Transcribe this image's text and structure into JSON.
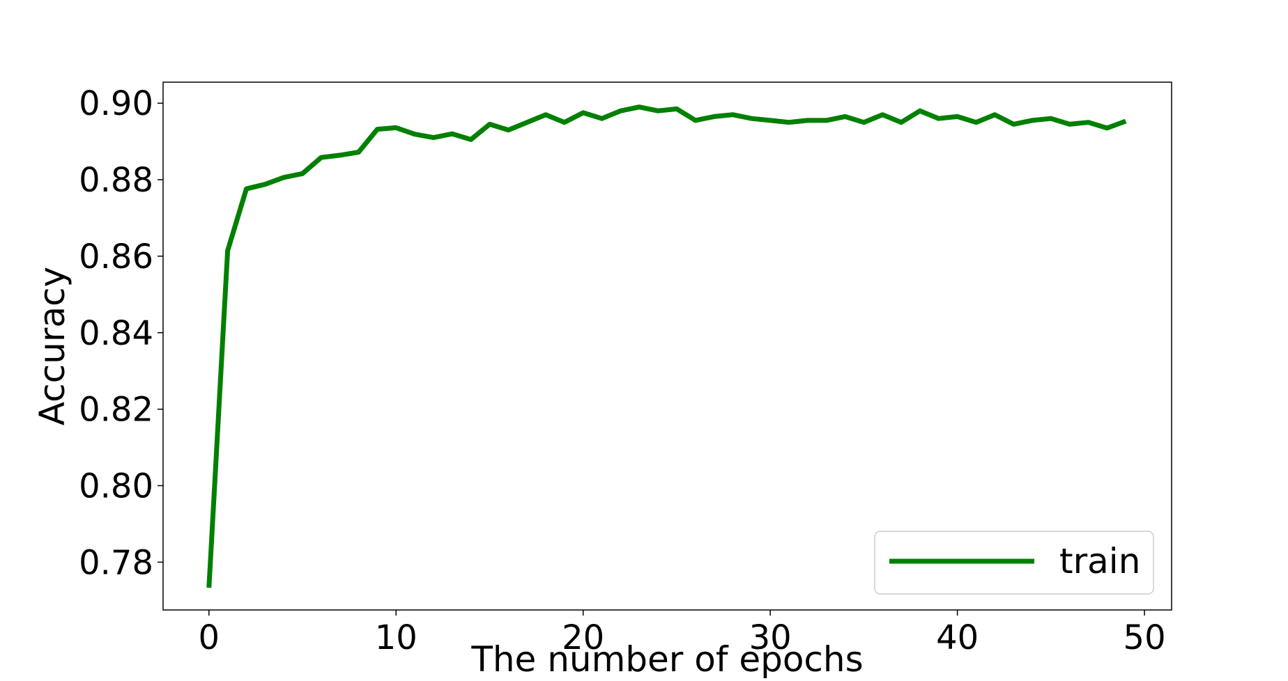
{
  "chart_data": {
    "type": "line",
    "title": "",
    "xlabel": "The number of epochs",
    "ylabel": "Accuracy",
    "xlim": [
      -2.45,
      51.45
    ],
    "ylim": [
      0.7675,
      0.9055
    ],
    "x_ticks": [
      0,
      10,
      20,
      30,
      40,
      50
    ],
    "x_tick_labels": [
      "0",
      "10",
      "20",
      "30",
      "40",
      "50"
    ],
    "y_ticks": [
      0.78,
      0.8,
      0.82,
      0.84,
      0.86,
      0.88,
      0.9
    ],
    "y_tick_labels": [
      "0.78",
      "0.80",
      "0.82",
      "0.84",
      "0.86",
      "0.88",
      "0.90"
    ],
    "grid": false,
    "legend": {
      "position": "lower-right",
      "entries": [
        "train"
      ]
    },
    "series": [
      {
        "name": "train",
        "color": "#008000",
        "x": [
          0,
          1,
          2,
          3,
          4,
          5,
          6,
          7,
          8,
          9,
          10,
          11,
          12,
          13,
          14,
          15,
          16,
          17,
          18,
          19,
          20,
          21,
          22,
          23,
          24,
          25,
          26,
          27,
          28,
          29,
          30,
          31,
          32,
          33,
          34,
          35,
          36,
          37,
          38,
          39,
          40,
          41,
          42,
          43,
          44,
          45,
          46,
          47,
          48,
          49
        ],
        "values": [
          0.7733,
          0.8614,
          0.8776,
          0.8788,
          0.8806,
          0.8816,
          0.8858,
          0.8864,
          0.8872,
          0.8932,
          0.8936,
          0.8919,
          0.891,
          0.892,
          0.8905,
          0.8945,
          0.893,
          0.895,
          0.897,
          0.895,
          0.8975,
          0.896,
          0.898,
          0.899,
          0.898,
          0.8985,
          0.8955,
          0.8965,
          0.897,
          0.896,
          0.8955,
          0.895,
          0.8955,
          0.8955,
          0.8965,
          0.895,
          0.897,
          0.895,
          0.898,
          0.896,
          0.8965,
          0.895,
          0.897,
          0.8945,
          0.8955,
          0.896,
          0.8945,
          0.895,
          0.8935,
          0.8953
        ]
      }
    ]
  }
}
